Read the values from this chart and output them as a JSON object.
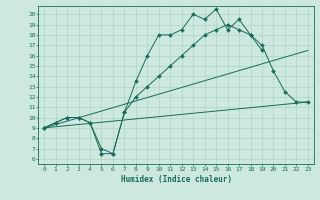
{
  "title": "",
  "xlabel": "Humidex (Indice chaleur)",
  "background_color": "#cce8df",
  "line_color": "#1a6b5a",
  "grid_color": "#a8cfc4",
  "xlim": [
    -0.5,
    23.5
  ],
  "ylim": [
    5.5,
    20.8
  ],
  "yticks": [
    6,
    7,
    8,
    9,
    10,
    11,
    12,
    13,
    14,
    15,
    16,
    17,
    18,
    19,
    20
  ],
  "xticks": [
    0,
    1,
    2,
    3,
    4,
    5,
    6,
    7,
    8,
    9,
    10,
    11,
    12,
    13,
    14,
    15,
    16,
    17,
    18,
    19,
    20,
    21,
    22,
    23
  ],
  "line1_x": [
    0,
    1,
    2,
    3,
    4,
    5,
    6,
    7,
    8,
    9,
    10,
    11,
    12,
    13,
    14,
    15,
    16,
    17,
    18,
    19
  ],
  "line1_y": [
    9,
    9.5,
    10,
    10,
    9.5,
    6.5,
    6.5,
    10.5,
    13.5,
    16,
    18,
    18,
    18.5,
    20,
    19.5,
    20.5,
    18.5,
    19.5,
    18,
    16.5
  ],
  "line2_x": [
    0,
    1,
    2,
    3,
    4,
    5,
    6,
    7,
    8,
    9,
    10,
    11,
    12,
    13,
    14,
    15,
    16,
    17,
    18,
    19,
    20,
    21,
    22,
    23
  ],
  "line2_y": [
    9,
    9.5,
    10,
    10,
    9.5,
    7,
    6.5,
    10.5,
    12,
    13,
    14,
    15,
    16,
    17,
    18,
    18.5,
    19,
    18.5,
    18,
    17,
    14.5,
    12.5,
    11.5,
    11.5
  ],
  "line3_x": [
    0,
    23
  ],
  "line3_y": [
    9,
    11.5
  ],
  "line4_x": [
    0,
    23
  ],
  "line4_y": [
    9,
    16.5
  ]
}
